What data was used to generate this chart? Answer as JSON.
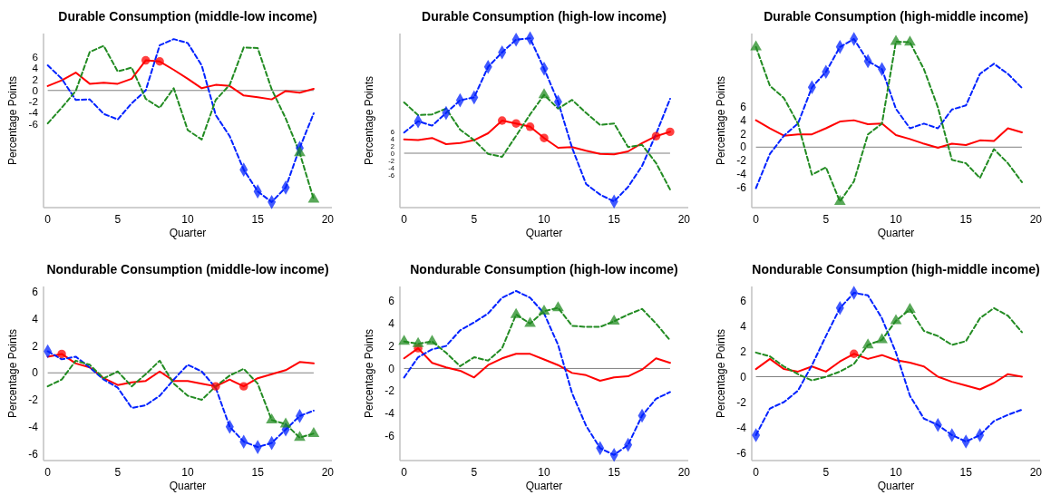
{
  "chart_data": [
    {
      "type": "line",
      "title": "Durable Consumption (middle-low income)",
      "xlabel": "Quarter",
      "ylabel": "Percentage Points",
      "x": [
        0,
        1,
        2,
        3,
        4,
        5,
        6,
        7,
        8,
        9,
        10,
        11,
        12,
        13,
        14,
        15,
        16,
        17,
        18,
        19
      ],
      "xlim": [
        -0.3,
        20.3
      ],
      "xticks": [
        0,
        5,
        10,
        15,
        20
      ],
      "ylim": [
        -21,
        10.2
      ],
      "yticks": [
        6,
        4,
        2,
        0,
        -2,
        -4,
        -6
      ],
      "grid": false,
      "ref_lines": [
        {
          "axis": "y",
          "value": 0,
          "color": "#808080"
        }
      ],
      "series": [
        {
          "color": "#ff0000",
          "line_style": "solid",
          "marker": "none",
          "values": [
            0.8,
            1.8,
            3.2,
            1.2,
            1.4,
            1.2,
            2.1,
            5.4,
            5.2,
            3.7,
            2.1,
            0.4,
            1.0,
            0.8,
            -0.9,
            -1.2,
            -1.6,
            -0.1,
            -0.4,
            0.3
          ]
        },
        {
          "color": "#0022ff",
          "line_style": "dashed",
          "marker": "none",
          "values": [
            4.5,
            2.1,
            -1.7,
            -1.6,
            -4.2,
            -5.2,
            -2.3,
            0,
            8.1,
            9.2,
            8.5,
            4.5,
            -4.4,
            -8.2,
            -14.2,
            -18.1,
            -20.0,
            -17.4,
            -10.3,
            -4.1
          ]
        },
        {
          "color": "#228b22",
          "line_style": "dashed",
          "marker": "none",
          "values": [
            -5.9,
            -3.1,
            -0.1,
            6.9,
            8.0,
            3.4,
            4.1,
            -1.5,
            -3.1,
            0.4,
            -7.1,
            -8.8,
            -1.7,
            1.0,
            7.7,
            7.6,
            0.2,
            -5.0,
            -11.2,
            -19.5
          ]
        },
        {
          "type": "scatter",
          "color": "#ff0000",
          "marker": "circle",
          "x": [
            7,
            8
          ],
          "values": [
            5.4,
            5.2
          ]
        },
        {
          "type": "scatter",
          "color": "#0022ff",
          "marker": "diamond",
          "x": [
            14,
            15,
            16,
            17,
            18
          ],
          "values": [
            -14.2,
            -18.1,
            -20.0,
            -17.4,
            -10.3
          ]
        },
        {
          "type": "scatter",
          "color": "#228b22",
          "marker": "triangle",
          "x": [
            18,
            19
          ],
          "values": [
            -11.2,
            -19.5
          ]
        }
      ]
    },
    {
      "type": "line",
      "title": "Durable Consumption (high-low income)",
      "xlabel": "Quarter",
      "ylabel": "Percentage Points",
      "x": [
        0,
        1,
        2,
        3,
        4,
        5,
        6,
        7,
        8,
        9,
        10,
        11,
        12,
        13,
        14,
        15,
        16,
        17,
        18,
        19
      ],
      "xlim": [
        -0.3,
        20.3
      ],
      "xticks": [
        0,
        5,
        10,
        15,
        20
      ],
      "ylim": [
        -15,
        33
      ],
      "yticks": [
        6,
        4,
        2,
        0,
        -2,
        -4,
        -6
      ],
      "grid": false,
      "ref_lines": [
        {
          "axis": "y",
          "value": 0,
          "color": "#808080"
        }
      ],
      "series": [
        {
          "color": "#ff0000",
          "line_style": "solid",
          "marker": "none",
          "values": [
            3.8,
            3.6,
            4.2,
            2.5,
            2.8,
            3.6,
            5.5,
            9.0,
            8.2,
            7.3,
            4.2,
            1.5,
            1.7,
            0.7,
            -0.2,
            -0.3,
            0.5,
            2.8,
            4.7,
            5.9
          ]
        },
        {
          "color": "#0022ff",
          "line_style": "dashed",
          "marker": "none",
          "values": [
            5.7,
            8.8,
            7.6,
            11.1,
            14.6,
            15.4,
            23.8,
            27.8,
            31.3,
            31.7,
            23.3,
            14.2,
            1.5,
            -8.5,
            -11.4,
            -13.3,
            -9.3,
            -3.5,
            5.3,
            15.0
          ]
        },
        {
          "color": "#228b22",
          "line_style": "dashed",
          "marker": "none",
          "values": [
            14.0,
            10.5,
            10.7,
            12.3,
            6.5,
            3.6,
            -0.2,
            -1.0,
            4.8,
            10.7,
            16.1,
            12.3,
            14.7,
            11.1,
            7.8,
            8.2,
            1.7,
            2.3,
            -2.7,
            -10.0
          ]
        },
        {
          "type": "scatter",
          "color": "#ff0000",
          "marker": "circle",
          "x": [
            7,
            8,
            9,
            10,
            18,
            19
          ],
          "values": [
            9.0,
            8.2,
            7.3,
            4.2,
            4.7,
            5.9
          ]
        },
        {
          "type": "scatter",
          "color": "#0022ff",
          "marker": "diamond",
          "x": [
            1,
            3,
            4,
            5,
            6,
            7,
            8,
            9,
            10,
            11,
            15
          ],
          "values": [
            8.8,
            11.1,
            14.6,
            15.4,
            23.8,
            27.8,
            31.3,
            31.7,
            23.3,
            14.2,
            -13.3
          ]
        },
        {
          "type": "scatter",
          "color": "#228b22",
          "marker": "triangle",
          "x": [
            10
          ],
          "values": [
            16.1
          ]
        }
      ]
    },
    {
      "type": "line",
      "title": "Durable Consumption (high-middle income)",
      "xlabel": "Quarter",
      "ylabel": "Percentage Points",
      "x": [
        0,
        1,
        2,
        3,
        4,
        5,
        6,
        7,
        8,
        9,
        10,
        11,
        12,
        13,
        14,
        15,
        16,
        17,
        18,
        19
      ],
      "xlim": [
        -0.3,
        20.3
      ],
      "xticks": [
        0,
        5,
        10,
        15,
        20
      ],
      "ylim": [
        -9,
        16.9
      ],
      "yticks": [
        6,
        4,
        2,
        0,
        -2,
        -4,
        -6
      ],
      "grid": false,
      "ref_lines": [
        {
          "axis": "y",
          "value": 0,
          "color": "#808080"
        }
      ],
      "series": [
        {
          "color": "#ff0000",
          "line_style": "solid",
          "marker": "none",
          "values": [
            4.0,
            2.8,
            1.7,
            1.9,
            1.9,
            2.8,
            3.8,
            4.0,
            3.4,
            3.5,
            1.8,
            1.2,
            0.5,
            -0.1,
            0.5,
            0.3,
            1.0,
            0.9,
            2.8,
            2.2
          ]
        },
        {
          "color": "#0022ff",
          "line_style": "dashed",
          "marker": "none",
          "values": [
            -6.1,
            -1.0,
            1.7,
            3.5,
            8.9,
            11.2,
            14.9,
            16.1,
            12.8,
            11.6,
            5.7,
            2.8,
            3.5,
            2.8,
            5.6,
            6.2,
            10.9,
            12.4,
            10.9,
            8.8
          ]
        },
        {
          "color": "#228b22",
          "line_style": "dashed",
          "marker": "none",
          "values": [
            14.9,
            9.1,
            7.3,
            3.5,
            -4.1,
            -3.0,
            -8.1,
            -5.1,
            1.9,
            3.5,
            15.7,
            15.6,
            11.6,
            5.9,
            -1.9,
            -2.4,
            -4.6,
            -0.3,
            -2.4,
            -5.2
          ]
        },
        {
          "type": "scatter",
          "color": "#0022ff",
          "marker": "diamond",
          "x": [
            4,
            5,
            6,
            7,
            8,
            9
          ],
          "values": [
            8.9,
            11.2,
            14.9,
            16.1,
            12.8,
            11.6
          ]
        },
        {
          "type": "scatter",
          "color": "#228b22",
          "marker": "triangle",
          "x": [
            0,
            6,
            10,
            11
          ],
          "values": [
            14.9,
            -8.1,
            15.7,
            15.6
          ]
        }
      ]
    },
    {
      "type": "line",
      "title": "Nondurable Consumption (middle-low income)",
      "xlabel": "Quarter",
      "ylabel": "Percentage Points",
      "x": [
        0,
        1,
        2,
        3,
        4,
        5,
        6,
        7,
        8,
        9,
        10,
        11,
        12,
        13,
        14,
        15,
        16,
        17,
        18,
        19
      ],
      "xlim": [
        -0.3,
        20.3
      ],
      "xticks": [
        0,
        5,
        10,
        15,
        20
      ],
      "ylim": [
        -6.5,
        6.4
      ],
      "yticks": [
        6,
        4,
        2,
        0,
        -2,
        -4,
        -6
      ],
      "grid": false,
      "ref_lines": [
        {
          "axis": "y",
          "value": 0,
          "color": "#808080"
        }
      ],
      "series": [
        {
          "color": "#ff0000",
          "line_style": "solid",
          "marker": "none",
          "values": [
            1.2,
            1.4,
            0.7,
            0.4,
            -0.4,
            -0.9,
            -0.7,
            -0.6,
            0.1,
            -0.6,
            -0.6,
            -0.8,
            -1.0,
            -0.5,
            -1.0,
            -0.4,
            -0.1,
            0.2,
            0.8,
            0.7
          ]
        },
        {
          "color": "#0022ff",
          "line_style": "dashed",
          "marker": "none",
          "values": [
            1.6,
            1.0,
            1.2,
            0.4,
            -0.5,
            -1.1,
            -2.6,
            -2.4,
            -1.7,
            -0.5,
            0.6,
            0.1,
            -1.1,
            -4.0,
            -5.1,
            -5.5,
            -5.2,
            -4.2,
            -3.2,
            -2.8
          ]
        },
        {
          "color": "#228b22",
          "line_style": "dashed",
          "marker": "none",
          "values": [
            -1.0,
            -0.5,
            0.9,
            0.6,
            -0.4,
            0.1,
            -1.0,
            -0.1,
            0.9,
            -0.8,
            -1.7,
            -2.0,
            -1.0,
            -0.2,
            0.3,
            -0.8,
            -3.5,
            -3.8,
            -4.8,
            -4.5
          ]
        },
        {
          "type": "scatter",
          "color": "#ff0000",
          "marker": "circle",
          "x": [
            1,
            12,
            14
          ],
          "values": [
            1.4,
            -1.0,
            -1.0
          ]
        },
        {
          "type": "scatter",
          "color": "#0022ff",
          "marker": "diamond",
          "x": [
            0,
            13,
            14,
            15,
            16,
            17,
            18
          ],
          "values": [
            1.6,
            -4.0,
            -5.1,
            -5.5,
            -5.2,
            -4.2,
            -3.2
          ]
        },
        {
          "type": "scatter",
          "color": "#228b22",
          "marker": "triangle",
          "x": [
            16,
            17,
            18,
            19
          ],
          "values": [
            -3.5,
            -3.8,
            -4.8,
            -4.5
          ]
        }
      ]
    },
    {
      "type": "line",
      "title": "Nondurable Consumption (high-low income)",
      "xlabel": "Quarter",
      "ylabel": "Percentage Points",
      "x": [
        0,
        1,
        2,
        3,
        4,
        5,
        6,
        7,
        8,
        9,
        10,
        11,
        12,
        13,
        14,
        15,
        16,
        17,
        18,
        19
      ],
      "xlim": [
        -0.3,
        20.3
      ],
      "xticks": [
        0,
        5,
        10,
        15,
        20
      ],
      "ylim": [
        -8.2,
        7.3
      ],
      "yticks": [
        6,
        4,
        2,
        0,
        -2,
        -4,
        -6
      ],
      "grid": false,
      "ref_lines": [
        {
          "axis": "y",
          "value": 0,
          "color": "#808080"
        }
      ],
      "series": [
        {
          "color": "#ff0000",
          "line_style": "solid",
          "marker": "none",
          "values": [
            0.9,
            1.8,
            0.5,
            0.1,
            -0.2,
            -0.8,
            0.3,
            0.9,
            1.3,
            1.3,
            0.8,
            0.3,
            -0.4,
            -0.6,
            -1.1,
            -0.8,
            -0.7,
            -0.1,
            0.9,
            0.5
          ]
        },
        {
          "color": "#0022ff",
          "line_style": "dashed",
          "marker": "none",
          "values": [
            -0.8,
            1.0,
            1.7,
            2.0,
            3.4,
            4.1,
            4.9,
            6.3,
            6.9,
            6.3,
            4.9,
            2.1,
            -2.2,
            -5.1,
            -7.1,
            -7.7,
            -6.8,
            -4.2,
            -2.7,
            -2.1
          ]
        },
        {
          "color": "#228b22",
          "line_style": "dashed",
          "marker": "none",
          "values": [
            2.4,
            2.2,
            2.4,
            1.4,
            0.2,
            1.0,
            0.7,
            1.8,
            4.8,
            4.0,
            5.1,
            5.4,
            3.8,
            3.7,
            3.7,
            4.2,
            4.8,
            5.3,
            4.0,
            2.5
          ]
        },
        {
          "type": "scatter",
          "color": "#ff0000",
          "marker": "circle",
          "x": [
            1
          ],
          "values": [
            1.8
          ]
        },
        {
          "type": "scatter",
          "color": "#0022ff",
          "marker": "diamond",
          "x": [
            14,
            15,
            16,
            17
          ],
          "values": [
            -7.1,
            -7.7,
            -6.8,
            -4.2
          ]
        },
        {
          "type": "scatter",
          "color": "#228b22",
          "marker": "triangle",
          "x": [
            0,
            1,
            2,
            8,
            9,
            10,
            11,
            15
          ],
          "values": [
            2.4,
            2.2,
            2.4,
            4.8,
            4.0,
            5.1,
            5.4,
            4.2
          ]
        }
      ]
    },
    {
      "type": "line",
      "title": "Nondurable Consumption (high-middle income)",
      "xlabel": "Quarter",
      "ylabel": "Percentage Points",
      "x": [
        0,
        1,
        2,
        3,
        4,
        5,
        6,
        7,
        8,
        9,
        10,
        11,
        12,
        13,
        14,
        15,
        16,
        17,
        18,
        19
      ],
      "xlim": [
        -0.3,
        20.3
      ],
      "xticks": [
        0,
        5,
        10,
        15,
        20
      ],
      "ylim": [
        -6.6,
        7.1
      ],
      "yticks": [
        6,
        4,
        2,
        0,
        -2,
        -4,
        -6
      ],
      "grid": false,
      "ref_lines": [
        {
          "axis": "y",
          "value": 0,
          "color": "#808080"
        }
      ],
      "series": [
        {
          "color": "#ff0000",
          "line_style": "solid",
          "marker": "none",
          "values": [
            0.6,
            1.4,
            0.6,
            0.4,
            0.8,
            0.4,
            1.2,
            1.8,
            1.4,
            1.7,
            1.3,
            1.1,
            0.8,
            0,
            -0.4,
            -0.7,
            -1.0,
            -0.5,
            0.2,
            0
          ]
        },
        {
          "color": "#0022ff",
          "line_style": "dashed",
          "marker": "none",
          "values": [
            -4.6,
            -2.5,
            -2.0,
            -1.1,
            0.9,
            3.2,
            5.4,
            6.6,
            6.4,
            4.6,
            1.9,
            -1.5,
            -3.3,
            -3.8,
            -4.6,
            -5.1,
            -4.6,
            -3.5,
            -3.0,
            -2.6
          ]
        },
        {
          "color": "#228b22",
          "line_style": "dashed",
          "marker": "none",
          "values": [
            1.9,
            1.6,
            0.8,
            0.2,
            -0.3,
            0,
            0.4,
            1.0,
            2.5,
            2.9,
            4.4,
            5.3,
            3.6,
            3.2,
            2.5,
            2.8,
            4.6,
            5.4,
            4.8,
            3.5
          ]
        },
        {
          "type": "scatter",
          "color": "#ff0000",
          "marker": "circle",
          "x": [
            7
          ],
          "values": [
            1.8
          ]
        },
        {
          "type": "scatter",
          "color": "#0022ff",
          "marker": "diamond",
          "x": [
            0,
            6,
            7,
            13,
            14,
            15,
            16
          ],
          "values": [
            -4.6,
            5.4,
            6.6,
            -3.8,
            -4.6,
            -5.1,
            -4.6
          ]
        },
        {
          "type": "scatter",
          "color": "#228b22",
          "marker": "triangle",
          "x": [
            8,
            9,
            10,
            11
          ],
          "values": [
            2.5,
            2.9,
            4.4,
            5.3
          ]
        }
      ]
    }
  ]
}
